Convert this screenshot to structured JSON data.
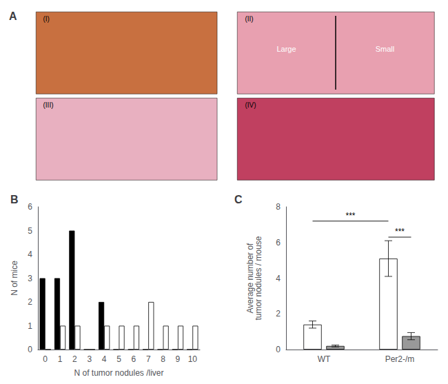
{
  "chart_data": [
    {
      "type": "image",
      "title": "A",
      "categories": [
        "(I)",
        "(II)",
        "(III)",
        "(IV)"
      ],
      "colors": [
        "#c87040",
        "#e8a0b0",
        "#e8b0c0",
        "#c04060"
      ],
      "annotations": [
        {
          "text": "Large",
          "panel": "(II)"
        },
        {
          "text": "Small",
          "panel": "(II)"
        }
      ]
    },
    {
      "type": "bar",
      "title": "B",
      "categories": [
        "0",
        "1",
        "2",
        "3",
        "4",
        "5",
        "6",
        "7",
        "8",
        "9",
        "10"
      ],
      "series": [
        {
          "color": "#000000",
          "values": [
            3,
            3,
            5,
            0,
            2,
            0,
            0,
            0,
            0,
            0,
            0
          ]
        },
        {
          "color": "#ffffff",
          "values": [
            0,
            1,
            1,
            0,
            1,
            1,
            1,
            2,
            1,
            1,
            1
          ]
        }
      ],
      "xlabel": "N of tumor nodules /liver",
      "ylabel": "N of mice",
      "ylim": [
        0,
        6
      ],
      "yticks": [
        0,
        1,
        2,
        3,
        4,
        5,
        6
      ],
      "grid": false
    },
    {
      "type": "bar",
      "title": "C",
      "categories": [
        "WT",
        "Per2-/m"
      ],
      "series": [
        {
          "color": "white",
          "values": [
            1.4,
            5.1
          ],
          "errors": [
            0.2,
            1.0
          ]
        },
        {
          "color": "#999999",
          "values": [
            0.2,
            0.75
          ],
          "errors": [
            0.05,
            0.2
          ]
        }
      ],
      "ylabel": "Average number of\ntumor nodules / mouse",
      "ylim": [
        0,
        8
      ],
      "yticks": [
        0,
        2,
        4,
        6,
        8
      ],
      "grid": false,
      "annotations": [
        {
          "text": "***",
          "y": 7.2,
          "from": {
            "category": "WT",
            "series": 0
          },
          "to": {
            "category": "Per2-/m",
            "series": 0
          }
        },
        {
          "text": "***",
          "y": 6.3,
          "from": {
            "category": "Per2-/m",
            "series": 0
          },
          "to": {
            "category": "Per2-/m",
            "series": 1
          }
        }
      ]
    }
  ]
}
